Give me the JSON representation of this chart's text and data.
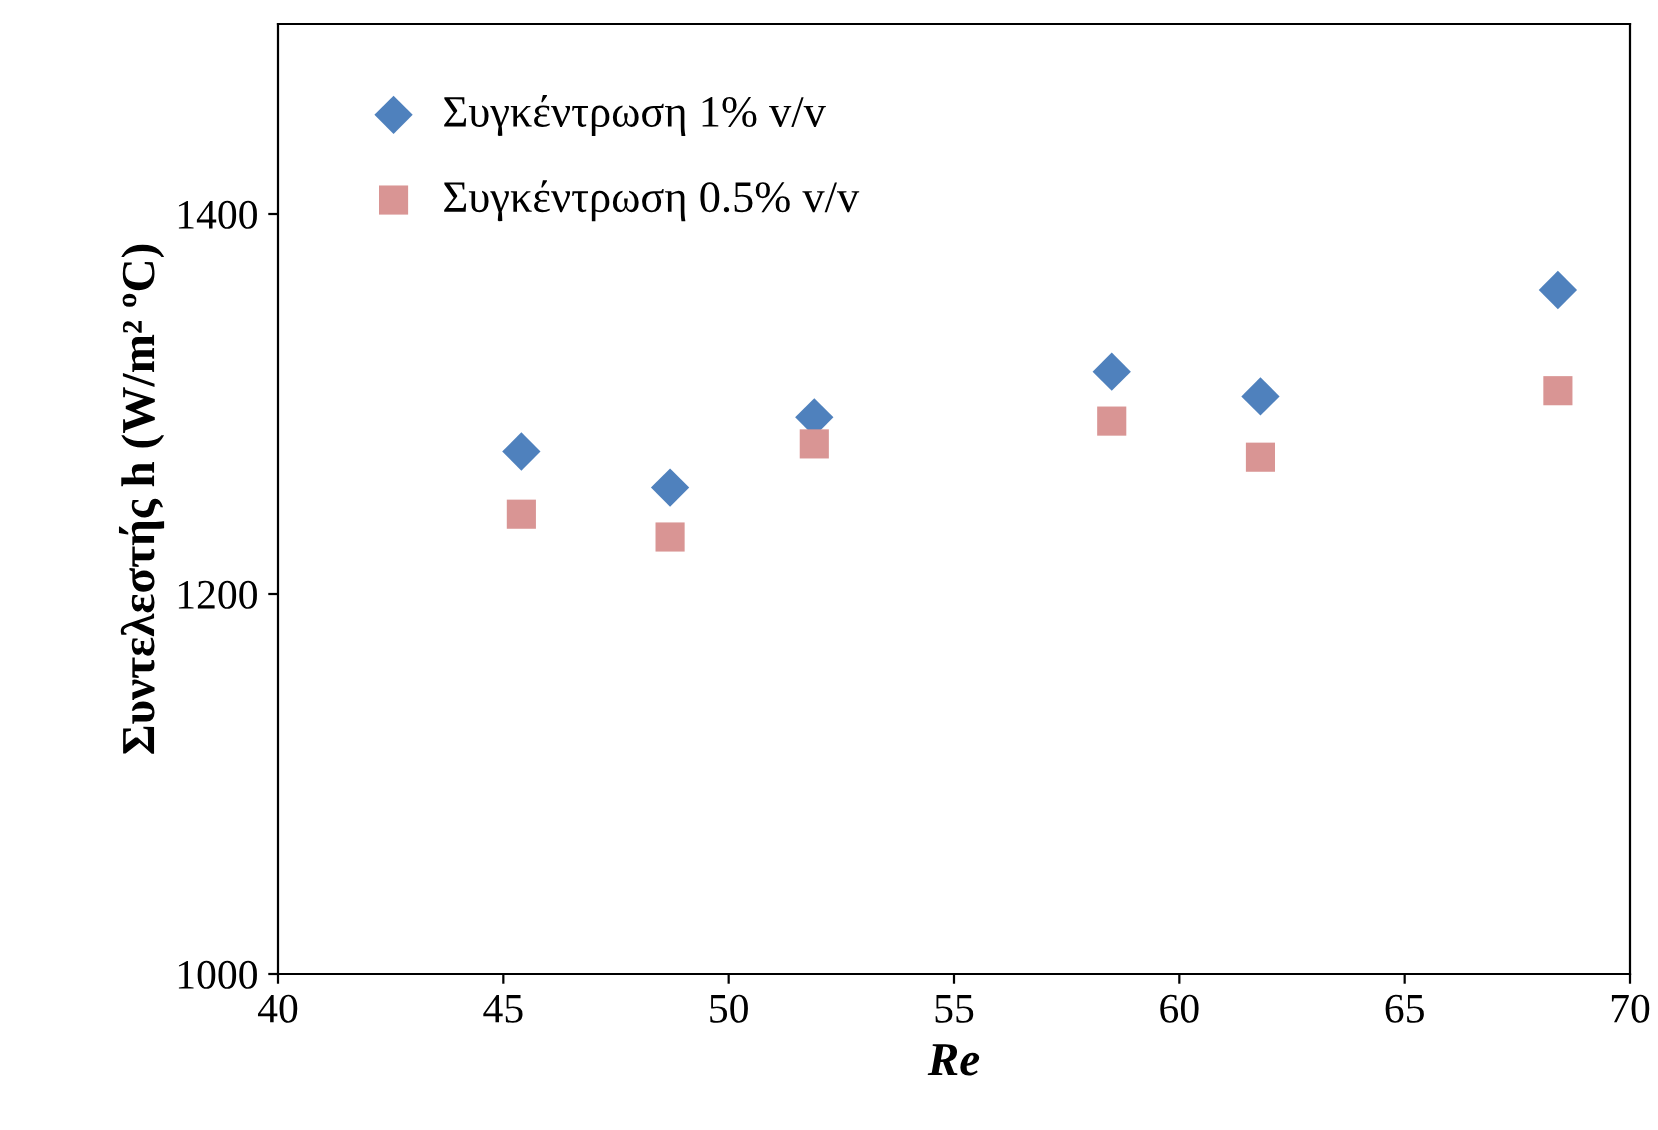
{
  "chart_data": {
    "type": "scatter",
    "xlabel": "Re",
    "ylabel": "Συντελεστής h (W/m² ºC)",
    "xlim": [
      40,
      70
    ],
    "xticks": [
      40,
      45,
      50,
      55,
      60,
      65,
      70
    ],
    "ylim": [
      1000,
      1500
    ],
    "yticks": [
      1000,
      1200,
      1400
    ],
    "grid": false,
    "legend": "top left",
    "series": [
      {
        "name": "Συγκέντρωση 1% v/v",
        "color": "#4f81bd",
        "marker": "diamond",
        "x": [
          45.4,
          48.7,
          51.9,
          58.5,
          61.8,
          68.4
        ],
        "values": [
          1275,
          1256,
          1293,
          1317,
          1304,
          1360
        ]
      },
      {
        "name": "Συγκέντρωση 0.5% v/v",
        "color": "#d99594",
        "marker": "square",
        "x": [
          45.4,
          48.7,
          51.9,
          58.5,
          61.8,
          68.4
        ],
        "values": [
          1242,
          1230,
          1279,
          1291,
          1272,
          1307
        ]
      }
    ]
  }
}
